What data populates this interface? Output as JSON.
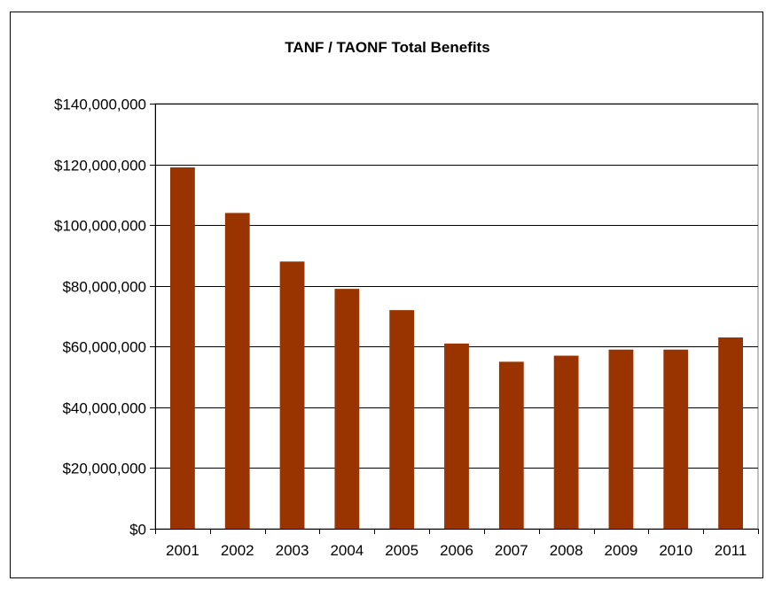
{
  "chart_data": {
    "type": "bar",
    "title": "TANF / TAONF Total Benefits",
    "xlabel": "",
    "ylabel": "",
    "categories": [
      "2001",
      "2002",
      "2003",
      "2004",
      "2005",
      "2006",
      "2007",
      "2008",
      "2009",
      "2010",
      "2011"
    ],
    "values": [
      119000000,
      104000000,
      88000000,
      79000000,
      72000000,
      61000000,
      55000000,
      57000000,
      59000000,
      59000000,
      63000000
    ],
    "ylim": [
      0,
      140000000
    ],
    "yticks": [
      0,
      20000000,
      40000000,
      60000000,
      80000000,
      100000000,
      120000000,
      140000000
    ],
    "ytick_labels": [
      "$0",
      "$20,000,000",
      "$40,000,000",
      "$60,000,000",
      "$80,000,000",
      "$100,000,000",
      "$120,000,000",
      "$140,000,000"
    ],
    "grid": true,
    "legend": "none",
    "colors": {
      "bar": "#993300",
      "grid": "#000000",
      "axis": "#000000",
      "plot_border": "#808080"
    }
  }
}
